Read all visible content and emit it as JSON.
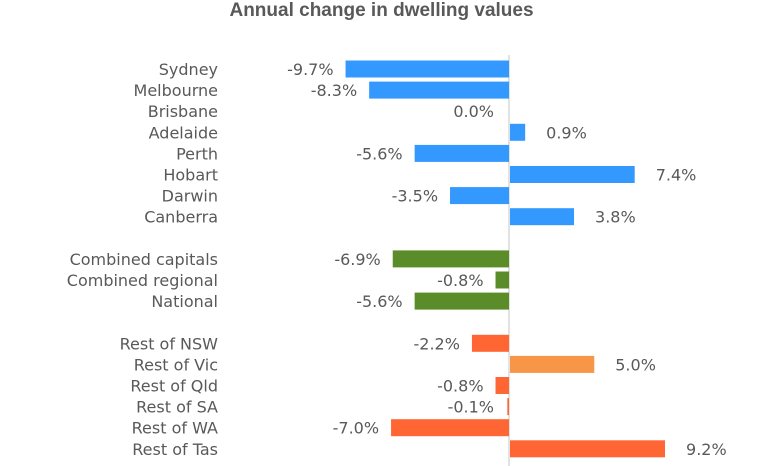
{
  "chart_data": {
    "type": "bar",
    "orientation": "horizontal",
    "title": "Annual change in dwelling values",
    "groups": [
      {
        "categories": [
          "Sydney",
          "Melbourne",
          "Brisbane",
          "Adelaide",
          "Perth",
          "Hobart",
          "Darwin",
          "Canberra"
        ],
        "values": [
          -9.7,
          -8.3,
          0.0,
          0.9,
          -5.6,
          7.4,
          -3.5,
          3.8
        ],
        "labels": [
          "-9.7%",
          "-8.3%",
          "0.0%",
          "0.9%",
          "-5.6%",
          "7.4%",
          "-3.5%",
          "3.8%"
        ],
        "colors": [
          "#3399ff",
          "#3399ff",
          "#3399ff",
          "#3399ff",
          "#3399ff",
          "#3399ff",
          "#3399ff",
          "#3399ff"
        ]
      },
      {
        "categories": [
          "Combined capitals",
          "Combined regional",
          "National"
        ],
        "values": [
          -6.9,
          -0.8,
          -5.6
        ],
        "labels": [
          "-6.9%",
          "-0.8%",
          "-5.6%"
        ],
        "colors": [
          "#5b8c2a",
          "#5b8c2a",
          "#5b8c2a"
        ]
      },
      {
        "categories": [
          "Rest of NSW",
          "Rest of Vic",
          "Rest of Qld",
          "Rest of SA",
          "Rest of WA",
          "Rest of Tas"
        ],
        "values": [
          -2.2,
          5.0,
          -0.8,
          -0.1,
          -7.0,
          9.2
        ],
        "labels": [
          "-2.2%",
          "5.0%",
          "-0.8%",
          "-0.1%",
          "-7.0%",
          "9.2%"
        ],
        "colors": [
          "#ff6633",
          "#f79646",
          "#ff6633",
          "#ff6633",
          "#ff6633",
          "#ff6633"
        ]
      }
    ],
    "xlim": [
      -10,
      10
    ],
    "grid": false,
    "legend": "none",
    "xlabel": "",
    "ylabel": ""
  }
}
